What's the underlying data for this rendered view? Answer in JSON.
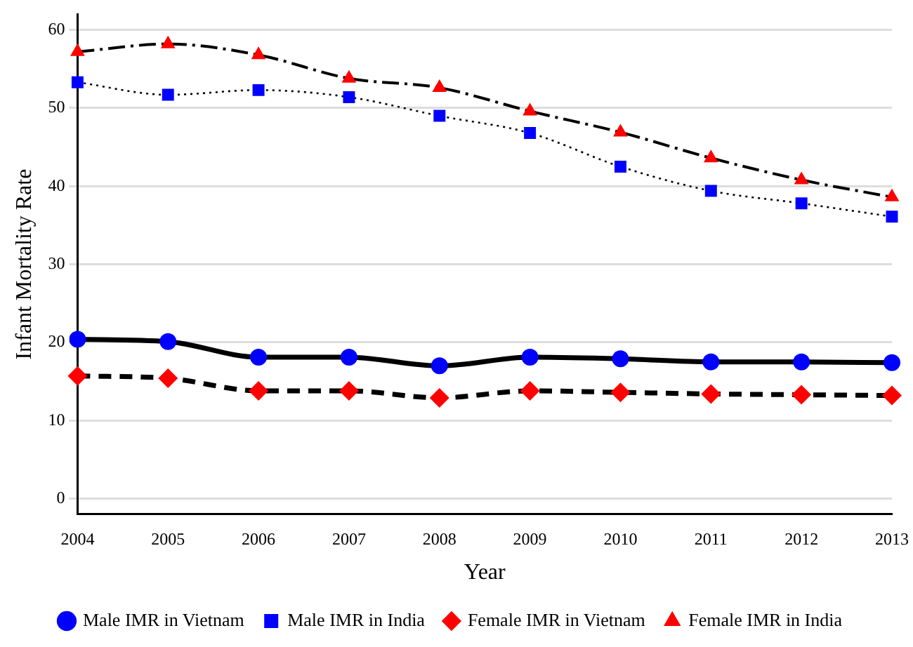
{
  "chart_data": {
    "type": "line",
    "xlabel": "Year",
    "ylabel": "Infant Mortality Rate",
    "categories": [
      "2004",
      "2005",
      "2006",
      "2007",
      "2008",
      "2009",
      "2010",
      "2011",
      "2012",
      "2013"
    ],
    "ylim": [
      -2,
      62
    ],
    "yticks": [
      0,
      10,
      20,
      30,
      40,
      50,
      60
    ],
    "grid": "y",
    "legend": "bottom",
    "series": [
      {
        "name": "Male IMR in Vietnam",
        "color": "#0000ff",
        "marker": "circle",
        "line_style": "solid",
        "values": [
          20.4,
          20.1,
          18.1,
          18.1,
          17.0,
          18.1,
          17.9,
          17.5,
          17.5,
          17.4
        ]
      },
      {
        "name": "Male IMR in India",
        "color": "#0000ff",
        "marker": "square",
        "line_style": "dotted",
        "values": [
          53.3,
          51.7,
          52.3,
          51.4,
          49.0,
          46.8,
          42.5,
          39.4,
          37.8,
          36.1
        ]
      },
      {
        "name": "Female IMR in Vietnam",
        "color": "#ff0000",
        "marker": "diamond",
        "line_style": "dashed",
        "values": [
          15.7,
          15.4,
          13.8,
          13.8,
          12.9,
          13.8,
          13.6,
          13.4,
          13.3,
          13.2
        ]
      },
      {
        "name": "Female IMR in India",
        "color": "#ff0000",
        "marker": "triangle",
        "line_style": "dashdot",
        "values": [
          57.2,
          58.2,
          56.8,
          53.8,
          52.6,
          49.6,
          46.9,
          43.6,
          40.8,
          38.6
        ]
      }
    ]
  }
}
